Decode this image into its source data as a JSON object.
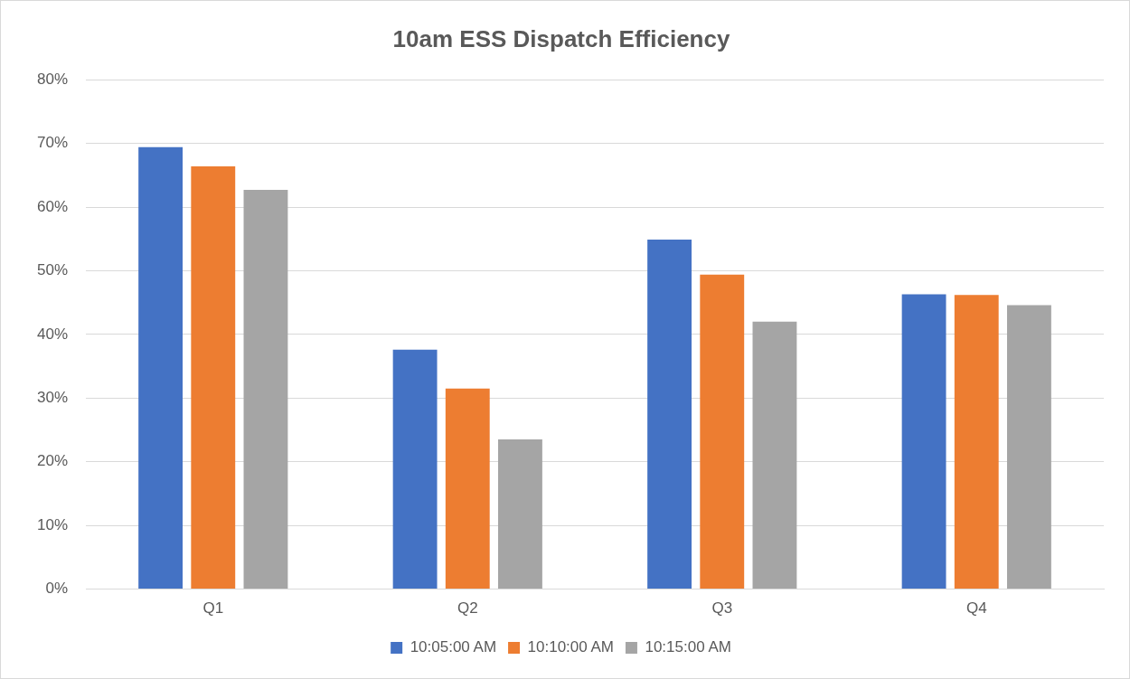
{
  "chart_data": {
    "type": "bar",
    "title": "10am ESS Dispatch Efficiency",
    "categories": [
      "Q1",
      "Q2",
      "Q3",
      "Q4"
    ],
    "series": [
      {
        "name": "10:05:00 AM",
        "color": "#4472c4",
        "values": [
          69.4,
          37.6,
          54.9,
          46.3
        ]
      },
      {
        "name": "10:10:00 AM",
        "color": "#ed7d31",
        "values": [
          66.4,
          31.5,
          49.4,
          46.2
        ]
      },
      {
        "name": "10:15:00 AM",
        "color": "#a5a5a5",
        "values": [
          62.7,
          23.5,
          42.0,
          44.6
        ]
      }
    ],
    "ylim": [
      0,
      80
    ],
    "yticks": [
      {
        "value": 0,
        "label": "0%"
      },
      {
        "value": 10,
        "label": "10%"
      },
      {
        "value": 20,
        "label": "20%"
      },
      {
        "value": 30,
        "label": "30%"
      },
      {
        "value": 40,
        "label": "40%"
      },
      {
        "value": 50,
        "label": "50%"
      },
      {
        "value": 60,
        "label": "60%"
      },
      {
        "value": 70,
        "label": "70%"
      },
      {
        "value": 80,
        "label": "80%"
      }
    ],
    "grid": "y",
    "legend": "bottom"
  }
}
